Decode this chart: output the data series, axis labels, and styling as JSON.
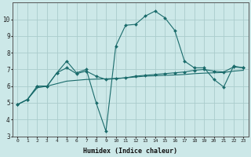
{
  "background_color": "#cce8e8",
  "grid_color": "#aacccc",
  "line_color": "#1a6b6b",
  "xlabel": "Humidex (Indice chaleur)",
  "ylim": [
    3,
    11
  ],
  "xlim": [
    -0.5,
    23.5
  ],
  "yticks": [
    3,
    4,
    5,
    6,
    7,
    8,
    9,
    10
  ],
  "xticks": [
    0,
    1,
    2,
    3,
    4,
    5,
    6,
    7,
    8,
    9,
    10,
    11,
    12,
    13,
    14,
    15,
    16,
    17,
    18,
    19,
    20,
    21,
    22,
    23
  ],
  "line_main_x": [
    0,
    1,
    2,
    3,
    4,
    5,
    6,
    7,
    8,
    9,
    10,
    11,
    12,
    13,
    14,
    15,
    16,
    17,
    18,
    19,
    20,
    21,
    22,
    23
  ],
  "line_main_y": [
    4.9,
    5.2,
    6.0,
    6.0,
    6.8,
    7.5,
    6.8,
    7.0,
    5.0,
    3.3,
    8.4,
    9.65,
    9.7,
    10.2,
    10.5,
    10.1,
    9.35,
    7.5,
    7.1,
    7.1,
    6.4,
    5.95,
    7.2,
    7.1
  ],
  "line_flat1_x": [
    0,
    1,
    2,
    3,
    4,
    5,
    6,
    7,
    8,
    9,
    10,
    11,
    12,
    13,
    14,
    15,
    16,
    17,
    18,
    19,
    20,
    21,
    22,
    23
  ],
  "line_flat1_y": [
    4.9,
    5.2,
    6.0,
    6.0,
    6.8,
    7.1,
    6.75,
    6.9,
    6.6,
    6.4,
    6.45,
    6.5,
    6.6,
    6.65,
    6.7,
    6.75,
    6.8,
    6.85,
    6.95,
    7.0,
    6.9,
    6.85,
    7.15,
    7.1
  ],
  "line_flat2_x": [
    0,
    1,
    2,
    3,
    4,
    5,
    6,
    7,
    8,
    9,
    10,
    11,
    12,
    13,
    14,
    15,
    16,
    17,
    18,
    19,
    20,
    21,
    22,
    23
  ],
  "line_flat2_y": [
    4.9,
    5.2,
    5.9,
    6.0,
    6.15,
    6.3,
    6.35,
    6.4,
    6.42,
    6.44,
    6.46,
    6.5,
    6.55,
    6.6,
    6.62,
    6.65,
    6.67,
    6.7,
    6.75,
    6.78,
    6.8,
    6.82,
    6.9,
    6.95
  ]
}
